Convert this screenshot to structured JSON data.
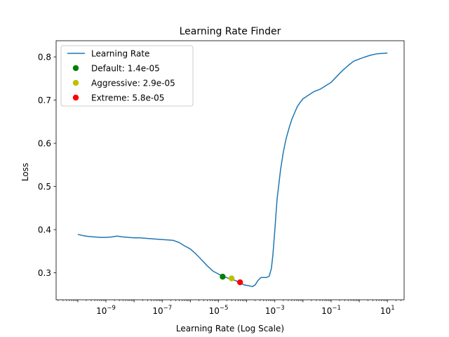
{
  "chart_data": {
    "type": "line",
    "title": "Learning Rate Finder",
    "xlabel": "Learning Rate (Log Scale)",
    "ylabel": "Loss",
    "xscale": "log",
    "xlim": [
      1.7e-11,
      39
    ],
    "ylim": [
      0.2375,
      0.8375
    ],
    "grid": false,
    "legend_position": "top-left",
    "x_ticks": [
      {
        "base": "10",
        "exp": "−9",
        "value": 1e-09
      },
      {
        "base": "10",
        "exp": "−7",
        "value": 1e-07
      },
      {
        "base": "10",
        "exp": "−5",
        "value": 1e-05
      },
      {
        "base": "10",
        "exp": "−3",
        "value": 0.001
      },
      {
        "base": "10",
        "exp": "−1",
        "value": 0.1
      },
      {
        "base": "10",
        "exp": "1",
        "value": 10
      }
    ],
    "y_ticks": [
      {
        "label": "0.3",
        "value": 0.3
      },
      {
        "label": "0.4",
        "value": 0.4
      },
      {
        "label": "0.5",
        "value": 0.5
      },
      {
        "label": "0.6",
        "value": 0.6
      },
      {
        "label": "0.7",
        "value": 0.7
      },
      {
        "label": "0.8",
        "value": 0.8
      }
    ],
    "series": [
      {
        "name": "Learning Rate",
        "color": "#1f77b4",
        "x": [
          1e-10,
          1.6e-10,
          2.5e-10,
          4e-10,
          6.3e-10,
          1e-09,
          1.6e-09,
          2.5e-09,
          4e-09,
          6.3e-09,
          1e-08,
          1.6e-08,
          2.5e-08,
          4e-08,
          6.3e-08,
          1e-07,
          1.6e-07,
          2.5e-07,
          4e-07,
          6.3e-07,
          1e-06,
          1.6e-06,
          2.5e-06,
          4e-06,
          6.3e-06,
          1e-05,
          1.6e-05,
          2.5e-05,
          4e-05,
          5.8e-05,
          8e-05,
          0.00012,
          0.00016,
          0.0002,
          0.00025,
          0.00032,
          0.0004,
          0.0005,
          0.00063,
          0.00075,
          0.00085,
          0.001,
          0.0012,
          0.0016,
          0.002,
          0.0025,
          0.0032,
          0.004,
          0.005,
          0.0063,
          0.008,
          0.01,
          0.016,
          0.025,
          0.04,
          0.063,
          0.1,
          0.16,
          0.25,
          0.4,
          0.63,
          1,
          1.6,
          2.5,
          4,
          6.3,
          10
        ],
        "y": [
          0.389,
          0.386,
          0.384,
          0.383,
          0.382,
          0.382,
          0.383,
          0.385,
          0.383,
          0.382,
          0.381,
          0.381,
          0.38,
          0.379,
          0.378,
          0.377,
          0.376,
          0.375,
          0.37,
          0.362,
          0.355,
          0.343,
          0.33,
          0.316,
          0.304,
          0.297,
          0.291,
          0.286,
          0.282,
          0.277,
          0.272,
          0.27,
          0.268,
          0.272,
          0.282,
          0.289,
          0.289,
          0.289,
          0.292,
          0.31,
          0.34,
          0.4,
          0.47,
          0.54,
          0.58,
          0.61,
          0.635,
          0.655,
          0.67,
          0.685,
          0.695,
          0.703,
          0.712,
          0.72,
          0.725,
          0.733,
          0.741,
          0.755,
          0.768,
          0.78,
          0.79,
          0.795,
          0.8,
          0.804,
          0.807,
          0.808,
          0.809
        ]
      }
    ],
    "points": [
      {
        "label": "Default: 1.4e-05",
        "x": 1.4e-05,
        "y": 0.291,
        "color": "#008000"
      },
      {
        "label": "Aggressive: 2.9e-05",
        "x": 2.9e-05,
        "y": 0.287,
        "color": "#bfbf00"
      },
      {
        "label": "Extreme: 5.8e-05",
        "x": 5.8e-05,
        "y": 0.278,
        "color": "#ff0000"
      }
    ]
  }
}
